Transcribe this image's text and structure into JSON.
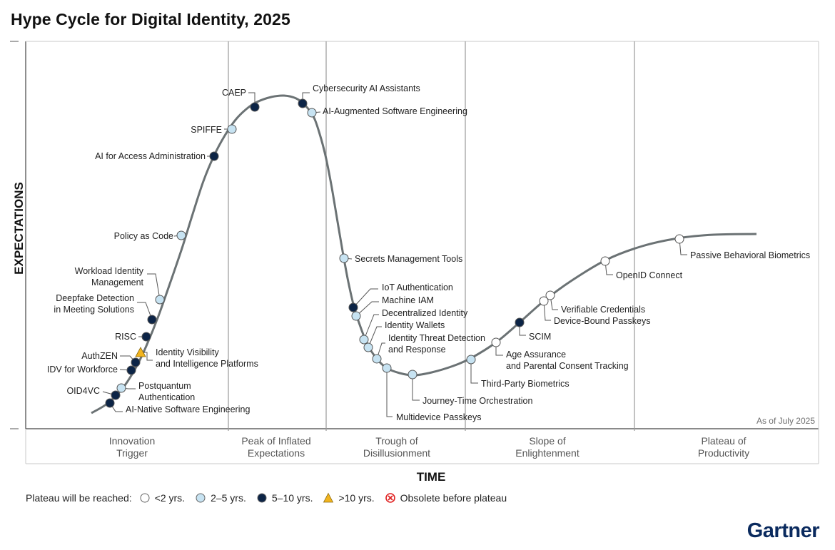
{
  "title": "Hype Cycle for Digital Identity, 2025",
  "as_of": "As of July 2025",
  "brand": "Gartner",
  "colors": {
    "lt2": "#ffffff",
    "y2to5": "#c7e3f2",
    "y5to10": "#0c2446",
    "gt10": "#f2b41e",
    "obsolete": "#e02020",
    "curve": "#6b7274",
    "divider": "#9a9a9a"
  },
  "legend": {
    "intro": "Plateau will be reached:",
    "items": [
      {
        "key": "lt2",
        "label": "<2 yrs.",
        "shape": "circle"
      },
      {
        "key": "y2to5",
        "label": "2–5 yrs.",
        "shape": "circle"
      },
      {
        "key": "y5to10",
        "label": "5–10 yrs.",
        "shape": "circle"
      },
      {
        "key": "gt10",
        "label": ">10 yrs.",
        "shape": "triangle"
      },
      {
        "key": "obsolete",
        "label": "Obsolete before plateau",
        "shape": "x-circle"
      }
    ]
  },
  "chart_data": {
    "type": "scatter",
    "xlabel": "TIME",
    "ylabel": "EXPECTATIONS",
    "phases": [
      {
        "lines": [
          "Innovation",
          "Trigger"
        ]
      },
      {
        "lines": [
          "Peak of Inflated",
          "Expectations"
        ]
      },
      {
        "lines": [
          "Trough of",
          "Disillusionment"
        ]
      },
      {
        "lines": [
          "Slope of",
          "Enlightenment"
        ]
      },
      {
        "lines": [
          "Plateau of",
          "Productivity"
        ]
      }
    ],
    "points": [
      {
        "name": "AI-Native Software Engineering",
        "cat": "y5to10"
      },
      {
        "name": "OID4VC",
        "cat": "y5to10"
      },
      {
        "name": "Postquantum Authentication",
        "cat": "y2to5"
      },
      {
        "name": "IDV for Workforce",
        "cat": "y5to10"
      },
      {
        "name": "AuthZEN",
        "cat": "y5to10"
      },
      {
        "name": "Identity Visibility and Intelligence Platforms",
        "cat": "gt10"
      },
      {
        "name": "RISC",
        "cat": "y5to10"
      },
      {
        "name": "Deepfake Detection in Meeting Solutions",
        "cat": "y5to10"
      },
      {
        "name": "Workload Identity Management",
        "cat": "y2to5"
      },
      {
        "name": "Policy as Code",
        "cat": "y2to5"
      },
      {
        "name": "AI for Access Administration",
        "cat": "y5to10"
      },
      {
        "name": "SPIFFE",
        "cat": "y2to5"
      },
      {
        "name": "CAEP",
        "cat": "y5to10"
      },
      {
        "name": "Cybersecurity AI Assistants",
        "cat": "y5to10"
      },
      {
        "name": "AI-Augmented Software Engineering",
        "cat": "y2to5"
      },
      {
        "name": "Secrets Management Tools",
        "cat": "y2to5"
      },
      {
        "name": "IoT Authentication",
        "cat": "y5to10"
      },
      {
        "name": "Machine IAM",
        "cat": "y2to5"
      },
      {
        "name": "Decentralized Identity",
        "cat": "y2to5"
      },
      {
        "name": "Identity Wallets",
        "cat": "y2to5"
      },
      {
        "name": "Identity Threat Detection and Response",
        "cat": "y2to5"
      },
      {
        "name": "Multidevice Passkeys",
        "cat": "y2to5"
      },
      {
        "name": "Journey-Time Orchestration",
        "cat": "y2to5"
      },
      {
        "name": "Third-Party Biometrics",
        "cat": "y2to5"
      },
      {
        "name": "Age Assurance and Parental Consent Tracking",
        "cat": "lt2"
      },
      {
        "name": "SCIM",
        "cat": "y5to10"
      },
      {
        "name": "Device-Bound Passkeys",
        "cat": "lt2"
      },
      {
        "name": "Verifiable Credentials",
        "cat": "lt2"
      },
      {
        "name": "OpenID Connect",
        "cat": "lt2"
      },
      {
        "name": "Passive Behavioral Biometrics",
        "cat": "lt2"
      }
    ]
  }
}
